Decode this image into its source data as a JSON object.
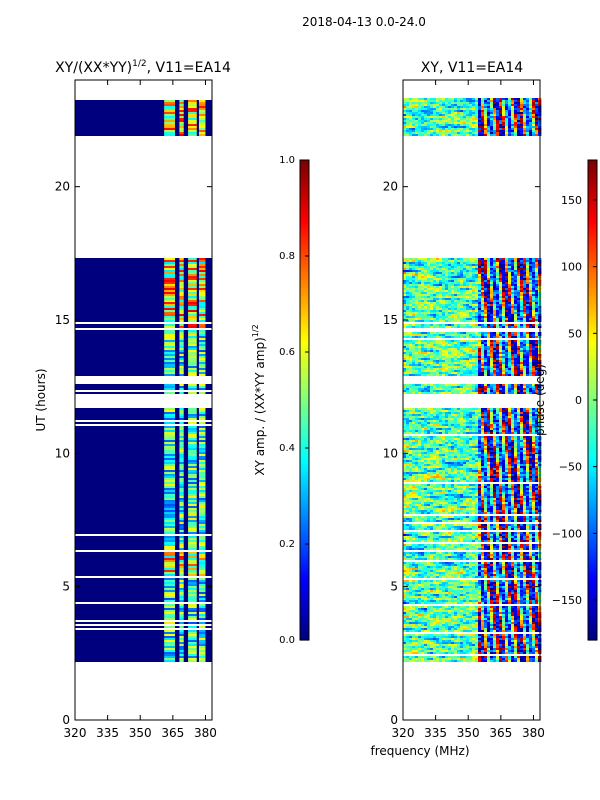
{
  "suptitle": "2018-04-13 0.0-24.0",
  "xlabel_shared": "frequency (MHz)",
  "colors": {
    "mask": "#ffffff",
    "low": "#00007f",
    "jet": [
      "#00007f",
      "#0000ff",
      "#007fff",
      "#00ffff",
      "#7fff7f",
      "#ffff00",
      "#ff7f00",
      "#ff0000",
      "#7f0000"
    ]
  },
  "chart_data": [
    {
      "type": "heatmap",
      "title_main": "XY/(XX*YY)",
      "title_sup": "1/2",
      "title_tail": ", V11=EA14",
      "xlabel": "",
      "ylabel": "UT (hours)",
      "xlim": [
        320,
        383
      ],
      "ylim": [
        0,
        24
      ],
      "xticks": [
        320,
        335,
        350,
        365,
        380
      ],
      "yticks": [
        0,
        5,
        10,
        15,
        20
      ],
      "data_ranges_ut": [
        [
          2.2,
          6.3
        ],
        [
          6.4,
          11.7
        ],
        [
          12.2,
          12.6
        ],
        [
          12.8,
          14.6
        ],
        [
          14.7,
          17.3
        ],
        [
          21.9,
          23.3
        ]
      ],
      "active_channels_mhz": [
        [
          361,
          366
        ],
        [
          368,
          370
        ],
        [
          372,
          376
        ],
        [
          377,
          380
        ]
      ],
      "colorbar": {
        "label_main": "XY amp. / (XX*YY amp)",
        "label_sup": "1/2",
        "range": [
          0.0,
          1.0
        ],
        "ticks": [
          "0.0",
          "0.2",
          "0.4",
          "0.6",
          "0.8",
          "1.0"
        ]
      }
    },
    {
      "type": "heatmap",
      "title_main": "XY, V11=EA14",
      "xlabel": "frequency (MHz)",
      "ylabel": "",
      "xlim": [
        320,
        383
      ],
      "ylim": [
        0,
        24
      ],
      "xticks": [
        320,
        335,
        350,
        365,
        380
      ],
      "yticks": [
        0,
        5,
        10,
        15,
        20
      ],
      "data_ranges_ut": [
        [
          2.2,
          6.3
        ],
        [
          6.4,
          11.7
        ],
        [
          12.2,
          12.6
        ],
        [
          12.8,
          14.6
        ],
        [
          14.7,
          17.3
        ],
        [
          21.9,
          23.3
        ]
      ],
      "colorbar": {
        "label": "phase (deg)",
        "range": [
          -180,
          180
        ],
        "ticks": [
          "-150",
          "-100",
          "-50",
          "0",
          "50",
          "100",
          "150"
        ]
      }
    }
  ]
}
